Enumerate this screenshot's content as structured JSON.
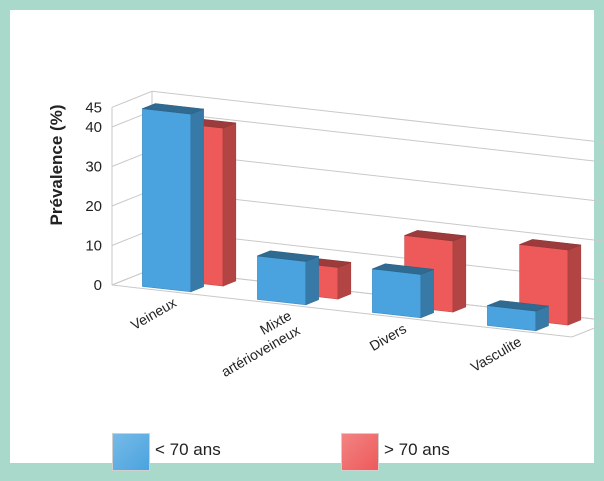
{
  "chart_data": {
    "type": "bar",
    "title": "",
    "xlabel": "",
    "ylabel": "Prévalence (%)",
    "ylim": [
      0,
      45
    ],
    "yticks": [
      "0",
      "10",
      "20",
      "30",
      "40",
      "45"
    ],
    "categories": [
      "Veineux",
      "Mixte|artérioveineux",
      "Divers",
      "Vasculite"
    ],
    "series": [
      {
        "name": "< 70 ans",
        "values": [
          45,
          11,
          11,
          5
        ],
        "color": "#4aa3df"
      },
      {
        "name": "> 70 ans",
        "values": [
          40,
          8,
          18,
          19
        ],
        "color": "#ee5a5a"
      }
    ],
    "grid": true,
    "legend_position": "bottom"
  }
}
